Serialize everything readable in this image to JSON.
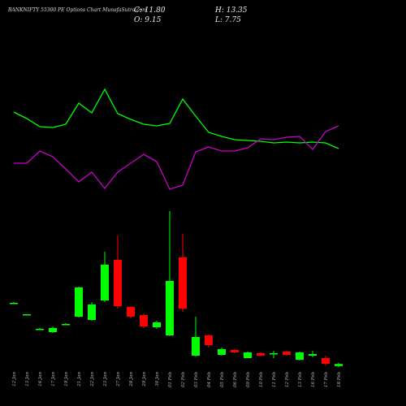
{
  "chart_data": {
    "type": "candlestick",
    "title": "BANKNIFTY 55300 PE Options Chart MunafaSutra.com",
    "stats": {
      "close_label": "C: 11.80",
      "high_label": "H: 13.35",
      "open_label": "O: 9.15",
      "low_label": "L: 7.75"
    },
    "x": [
      "12 Jan",
      "13 Jan",
      "16 Jan",
      "17 Jan",
      "19 Jan",
      "21 Jan",
      "22 Jan",
      "23 Jan",
      "27 Jan",
      "28 Jan",
      "29 Jan",
      "30 Jan",
      "01 Feb",
      "02 Feb",
      "03 Feb",
      "04 Feb",
      "05 Feb",
      "06 Feb",
      "09 Feb",
      "10 Feb",
      "11 Feb",
      "12 Feb",
      "13 Feb",
      "16 Feb",
      "17 Feb",
      "18 Feb"
    ],
    "open": [
      86,
      72,
      54,
      51,
      60,
      70,
      66,
      90,
      140,
      82,
      72,
      57,
      47,
      143,
      22,
      47,
      23,
      29,
      19,
      25,
      24,
      27,
      17,
      22,
      19,
      9.15
    ],
    "high": [
      88,
      73,
      56,
      58,
      62,
      107,
      88,
      150,
      170,
      83,
      74,
      65,
      200,
      172,
      70,
      48,
      32,
      30,
      27,
      26,
      28,
      28,
      27,
      28,
      22,
      13.35
    ],
    "low": [
      86,
      72,
      54,
      50,
      60,
      69,
      65,
      88,
      80,
      68,
      56,
      55,
      46,
      76,
      21,
      32,
      22,
      25,
      19,
      21,
      19,
      22,
      16,
      20,
      10,
      7.75
    ],
    "close": [
      87,
      73,
      55,
      56,
      61,
      106,
      85,
      134,
      83,
      70,
      58,
      63,
      114,
      80,
      45,
      35,
      30,
      26,
      26,
      22,
      25,
      23,
      26,
      24,
      12,
      11.8
    ],
    "up_color": "#00ff00",
    "down_color": "#ff0000",
    "ylim": [
      0,
      210
    ],
    "indicator_ylim": [
      0,
      160
    ],
    "series": [
      {
        "color": "#00ff00",
        "values": [
          122,
          114,
          104,
          103,
          107,
          133,
          121,
          150,
          120,
          113,
          107,
          105,
          108,
          138,
          117,
          97,
          92,
          88,
          87,
          86,
          84,
          85,
          84,
          85,
          84,
          77
        ]
      },
      {
        "color": "#cc00cc",
        "values": [
          59,
          59,
          74,
          67,
          52,
          36,
          48,
          28,
          48,
          59,
          70,
          61,
          27,
          32,
          73,
          79,
          74,
          74,
          78,
          89,
          88,
          91,
          92,
          76,
          98,
          105
        ]
      }
    ]
  }
}
